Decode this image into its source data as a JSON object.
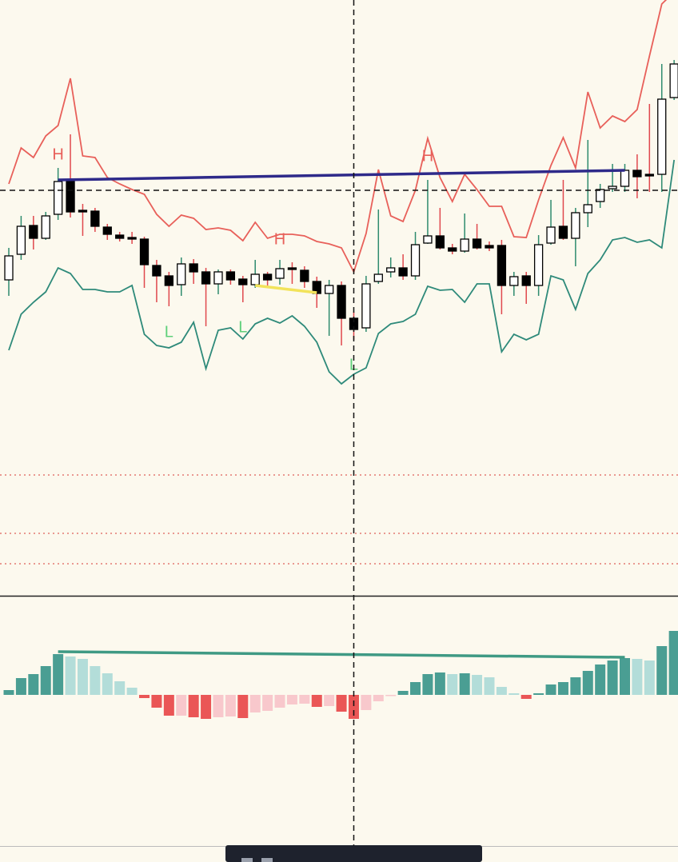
{
  "chart_data": [
    {
      "type": "candlestick",
      "ylim": [
        0,
        745
      ],
      "up_color": "#ffffff",
      "down_color": "#000000",
      "wick_up_color": "#2e8b6e",
      "wick_down_color": "#e0484d",
      "open": [
        395,
        427,
        463,
        447,
        477,
        520,
        482,
        481,
        461,
        451,
        448,
        446,
        413,
        400,
        389,
        415,
        405,
        390,
        405,
        396,
        389,
        402,
        397,
        410,
        407,
        393,
        378,
        388,
        347,
        335,
        393,
        405,
        410,
        400,
        441,
        450,
        435,
        431,
        446,
        438,
        438,
        388,
        400,
        388,
        441,
        462,
        447,
        479,
        493,
        509,
        512,
        532,
        527,
        527,
        623
      ],
      "high": [
        435,
        475,
        475,
        480,
        535,
        577,
        490,
        485,
        465,
        455,
        455,
        449,
        420,
        405,
        423,
        421,
        410,
        408,
        408,
        400,
        420,
        405,
        420,
        417,
        412,
        399,
        395,
        393,
        355,
        400,
        483,
        423,
        427,
        455,
        520,
        485,
        440,
        478,
        465,
        443,
        445,
        405,
        405,
        451,
        495,
        520,
        485,
        570,
        515,
        540,
        540,
        552,
        615,
        665,
        670
      ],
      "low": [
        375,
        420,
        433,
        445,
        470,
        473,
        450,
        455,
        445,
        443,
        440,
        385,
        367,
        362,
        375,
        390,
        337,
        377,
        389,
        367,
        385,
        387,
        389,
        390,
        385,
        360,
        325,
        313,
        320,
        330,
        390,
        398,
        395,
        395,
        440,
        433,
        427,
        429,
        433,
        431,
        352,
        375,
        365,
        375,
        439,
        445,
        412,
        461,
        485,
        505,
        505,
        497,
        505,
        505,
        620
      ],
      "close": [
        425,
        462,
        447,
        475,
        518,
        480,
        480,
        462,
        452,
        447,
        446,
        414,
        400,
        388,
        415,
        405,
        390,
        405,
        395,
        389,
        402,
        395,
        409,
        408,
        393,
        378,
        388,
        347,
        333,
        390,
        402,
        410,
        400,
        439,
        450,
        435,
        431,
        446,
        435,
        435,
        388,
        399,
        388,
        439,
        461,
        447,
        479,
        489,
        508,
        512,
        532,
        524,
        525,
        621,
        665
      ],
      "lines": [
        {
          "color": "#e8605a",
          "values": [
            515,
            560,
            548,
            575,
            588,
            647,
            550,
            548,
            523,
            515,
            508,
            502,
            477,
            462,
            476,
            472,
            458,
            460,
            457,
            444,
            467,
            447,
            452,
            452,
            450,
            443,
            440,
            435,
            405,
            453,
            533,
            475,
            468,
            507,
            572,
            523,
            493,
            527,
            508,
            487,
            487,
            449,
            448,
            495,
            538,
            573,
            535,
            630,
            585,
            600,
            593,
            608,
            675,
            740,
            755
          ]
        },
        {
          "color": "#2e8a7a",
          "values": [
            307,
            352,
            367,
            380,
            410,
            403,
            383,
            383,
            380,
            380,
            388,
            327,
            313,
            310,
            317,
            342,
            284,
            332,
            335,
            321,
            340,
            347,
            341,
            350,
            337,
            317,
            280,
            265,
            277,
            285,
            328,
            340,
            343,
            352,
            387,
            382,
            383,
            367,
            390,
            390,
            305,
            327,
            320,
            327,
            400,
            395,
            358,
            403,
            420,
            445,
            448,
            442,
            445,
            435,
            545
          ]
        }
      ],
      "trendlines": [
        {
          "color": "#2e2a8a",
          "x": [
            4,
            50
          ],
          "values": [
            520,
            532
          ]
        },
        {
          "color": "#f2e35a",
          "x": [
            20,
            25
          ],
          "values": [
            388,
            379
          ]
        }
      ],
      "hlines": [
        {
          "value": 151,
          "color": "#e0605a"
        },
        {
          "value": 78,
          "color": "#e0605a"
        },
        {
          "value": 40,
          "color": "#e0605a"
        }
      ],
      "crosshair": {
        "index": 28,
        "value": 507
      },
      "annotations": [
        {
          "text": "H",
          "index": 4,
          "value": 551,
          "color": "#e8605a"
        },
        {
          "text": "H",
          "index": 22,
          "value": 445,
          "color": "#e8605a"
        },
        {
          "text": "H",
          "index": 34,
          "value": 549,
          "color": "#e8605a"
        },
        {
          "text": "L",
          "index": 13,
          "value": 329,
          "color": "#5fd07a"
        },
        {
          "text": "L",
          "index": 19,
          "value": 335,
          "color": "#5fd07a"
        },
        {
          "text": "L",
          "index": 28,
          "value": 288,
          "color": "#5fd07a"
        }
      ]
    },
    {
      "type": "histogram",
      "ylim": [
        -189,
        123
      ],
      "colors": {
        "up_grow": "#4a9e93",
        "up_fall": "#b3ddd9",
        "down_grow": "#ea5656",
        "down_fall": "#f8c8cc"
      },
      "values": [
        6,
        21,
        26,
        36,
        51,
        48,
        45,
        36,
        27,
        17,
        9,
        -4,
        -16,
        -26,
        -26,
        -28,
        -30,
        -28,
        -27,
        -29,
        -22,
        -20,
        -16,
        -12,
        -11,
        -15,
        -14,
        -21,
        -30,
        -19,
        -8,
        -1,
        5,
        16,
        26,
        28,
        26,
        27,
        25,
        22,
        10,
        2,
        -5,
        2,
        13,
        16,
        22,
        30,
        38,
        43,
        46,
        45,
        43,
        61,
        80
      ],
      "trendlines": [
        {
          "color": "#3f9a84",
          "x": [
            4,
            50
          ],
          "values": [
            54,
            47
          ]
        }
      ]
    }
  ]
}
